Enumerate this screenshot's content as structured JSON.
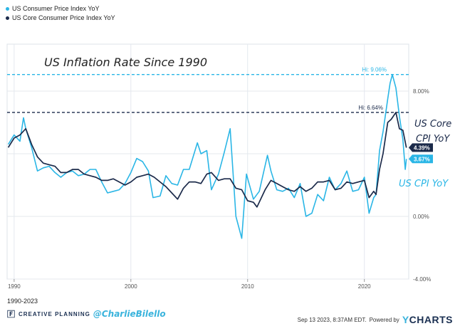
{
  "legend": [
    {
      "name": "US Consumer Price Index YoY",
      "color": "#2ab6e6"
    },
    {
      "name": "US Core Consumer Price Index YoY",
      "color": "#1b2a4a"
    }
  ],
  "range_label": "1990-2023",
  "branding": {
    "company": "CREATIVE PLANNING",
    "handle": "@CharlieBilello"
  },
  "footer": {
    "timestamp": "Sep 13 2023, 8:37AM EDT.",
    "powered_by": "Powered by",
    "logo_y": "Y",
    "logo_rest": "CHARTS"
  },
  "chart_data": {
    "type": "line",
    "title": "US Inflation Rate Since 1990",
    "ylim": [
      -4,
      11
    ],
    "xlim": [
      1989.4,
      2023.8
    ],
    "x_ticks": [
      {
        "value": 1990,
        "label": "1990"
      },
      {
        "value": 2000,
        "label": "2000"
      },
      {
        "value": 2010,
        "label": "2010"
      },
      {
        "value": 2020,
        "label": "2020"
      }
    ],
    "y_ticks": [
      {
        "value": 8,
        "label": "8.00%"
      },
      {
        "value": 0,
        "label": "0.00%"
      },
      {
        "value": -4,
        "label": "-4.00%"
      }
    ],
    "series": [
      {
        "name": "US Consumer Price Index YoY",
        "color": "#2ab6e6",
        "last_label": "3.67%",
        "x": [
          1989.5,
          1990.0,
          1990.5,
          1990.8,
          1991.0,
          1991.5,
          1992.0,
          1992.5,
          1993.0,
          1993.5,
          1994.0,
          1994.5,
          1995.0,
          1995.5,
          1996.0,
          1996.5,
          1997.0,
          1997.5,
          1998.0,
          1998.5,
          1999.0,
          1999.5,
          2000.0,
          2000.5,
          2001.0,
          2001.5,
          2001.9,
          2002.5,
          2003.0,
          2003.5,
          2004.0,
          2004.5,
          2005.0,
          2005.7,
          2006.0,
          2006.5,
          2006.9,
          2007.5,
          2008.0,
          2008.5,
          2009.0,
          2009.5,
          2009.9,
          2010.5,
          2011.0,
          2011.7,
          2012.0,
          2012.5,
          2013.0,
          2013.5,
          2014.0,
          2014.5,
          2015.0,
          2015.5,
          2016.0,
          2016.5,
          2017.0,
          2017.5,
          2018.0,
          2018.5,
          2019.0,
          2019.5,
          2020.0,
          2020.4,
          2020.8,
          2021.0,
          2021.3,
          2021.6,
          2022.0,
          2022.2,
          2022.4,
          2022.7,
          2023.0,
          2023.3,
          2023.5,
          2023.6
        ],
        "y": [
          4.6,
          5.2,
          4.8,
          6.3,
          5.6,
          4.4,
          2.9,
          3.1,
          3.2,
          2.8,
          2.5,
          2.8,
          2.9,
          2.6,
          2.7,
          3.0,
          3.0,
          2.2,
          1.5,
          1.6,
          1.7,
          2.1,
          2.8,
          3.7,
          3.5,
          2.9,
          1.2,
          1.3,
          2.6,
          2.1,
          2.0,
          3.0,
          3.0,
          4.7,
          4.0,
          4.2,
          1.7,
          2.7,
          4.1,
          5.6,
          0.0,
          -1.4,
          2.7,
          1.1,
          1.6,
          3.9,
          2.9,
          1.7,
          1.6,
          1.8,
          1.2,
          2.1,
          0.0,
          0.2,
          1.4,
          1.0,
          2.5,
          1.7,
          2.1,
          2.9,
          1.6,
          1.7,
          2.5,
          0.2,
          1.2,
          1.4,
          4.2,
          5.4,
          7.5,
          8.5,
          9.06,
          8.2,
          6.4,
          4.9,
          3.0,
          3.67
        ]
      },
      {
        "name": "US Core Consumer Price Index YoY",
        "color": "#1b2a4a",
        "last_label": "4.39%",
        "x": [
          1989.5,
          1990.0,
          1990.5,
          1991.0,
          1991.5,
          1992.0,
          1992.5,
          1993.0,
          1993.5,
          1994.0,
          1994.5,
          1995.0,
          1995.5,
          1996.0,
          1996.5,
          1997.0,
          1997.5,
          1998.0,
          1998.5,
          1999.0,
          1999.5,
          2000.0,
          2000.5,
          2001.0,
          2001.5,
          2002.0,
          2002.5,
          2003.0,
          2003.5,
          2004.0,
          2004.5,
          2005.0,
          2005.5,
          2006.0,
          2006.5,
          2006.9,
          2007.5,
          2008.0,
          2008.5,
          2009.0,
          2009.5,
          2010.0,
          2010.5,
          2010.8,
          2011.5,
          2012.0,
          2012.5,
          2013.0,
          2013.5,
          2014.0,
          2014.5,
          2015.0,
          2015.5,
          2016.0,
          2016.5,
          2017.0,
          2017.5,
          2018.0,
          2018.5,
          2019.0,
          2019.5,
          2020.0,
          2020.4,
          2020.8,
          2021.0,
          2021.3,
          2021.6,
          2022.0,
          2022.3,
          2022.7,
          2023.0,
          2023.3,
          2023.6
        ],
        "y": [
          4.4,
          5.0,
          5.2,
          5.6,
          4.6,
          3.8,
          3.4,
          3.3,
          3.2,
          2.8,
          2.8,
          3.0,
          3.0,
          2.7,
          2.6,
          2.5,
          2.3,
          2.3,
          2.4,
          2.2,
          2.0,
          2.2,
          2.5,
          2.6,
          2.7,
          2.5,
          2.2,
          1.9,
          1.5,
          1.1,
          1.8,
          2.2,
          2.2,
          2.1,
          2.7,
          2.8,
          2.3,
          2.4,
          2.4,
          1.8,
          1.7,
          1.0,
          0.9,
          0.6,
          1.7,
          2.3,
          2.1,
          1.9,
          1.7,
          1.6,
          1.9,
          1.6,
          1.8,
          2.2,
          2.2,
          2.3,
          1.7,
          1.8,
          2.2,
          2.1,
          2.2,
          2.3,
          1.2,
          1.6,
          1.4,
          3.0,
          4.0,
          6.0,
          6.2,
          6.64,
          5.6,
          5.5,
          4.39
        ]
      }
    ],
    "annotations": [
      {
        "value": 9.06,
        "label": "Hi: 9.06%",
        "color": "#2ab6e6"
      },
      {
        "value": 6.64,
        "label": "Hi: 6.64%",
        "color": "#1b2a4a"
      }
    ],
    "hand_notes": {
      "core_line1": "US Core",
      "core_line2": "CPI YoY",
      "cpi": "US CPI YoY"
    }
  }
}
